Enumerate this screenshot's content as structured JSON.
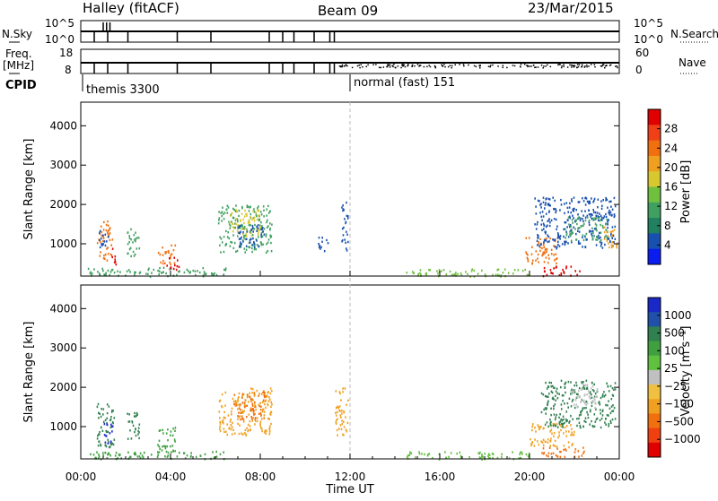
{
  "header": {
    "title": "Halley (fitACF)",
    "beam": "Beam 09",
    "date": "23/Mar/2015"
  },
  "panels": {
    "nsky": {
      "left_label": "N.Sky",
      "right_label": "N.Search",
      "left_ticks": [
        "10^5",
        "10^0"
      ],
      "right_ticks": [
        "10^5",
        "10^0"
      ]
    },
    "freq": {
      "left_label_1": "Freq.",
      "left_label_2": "[MHz]",
      "right_label": "Nave",
      "left_ticks": [
        "18",
        "8"
      ],
      "right_ticks": [
        "60",
        "0"
      ]
    },
    "cpid": {
      "label": "CPID",
      "mode_1": "themis 3300",
      "mode_2": "normal (fast) 151"
    }
  },
  "chart_data": [
    {
      "type": "heatmap",
      "name": "power",
      "ylabel": "Slant Range [km]",
      "xlabel": "",
      "yticks": [
        1000,
        2000,
        3000,
        4000
      ],
      "ylim": [
        180,
        4600
      ],
      "xlim": [
        0,
        24
      ],
      "colorbar": {
        "label": "Power [dB]",
        "ticks": [
          "28",
          "24",
          "20",
          "16",
          "12",
          "8",
          "4"
        ],
        "colors": [
          "#e00000",
          "#f04018",
          "#f07010",
          "#f0a020",
          "#d8c830",
          "#70c040",
          "#40a060",
          "#208060",
          "#1850b0",
          "#0a1cf0"
        ]
      },
      "regions": [
        {
          "t0": 0.7,
          "t1": 1.4,
          "r0": 600,
          "r1": 1600,
          "c": "#f07010"
        },
        {
          "t0": 0.8,
          "t1": 1.2,
          "r0": 900,
          "r1": 1500,
          "c": "#1850b0"
        },
        {
          "t0": 1.3,
          "t1": 1.6,
          "r0": 500,
          "r1": 900,
          "c": "#e00000"
        },
        {
          "t0": 2.0,
          "t1": 2.6,
          "r0": 700,
          "r1": 1400,
          "c": "#40a060"
        },
        {
          "t0": 3.4,
          "t1": 4.2,
          "r0": 500,
          "r1": 1000,
          "c": "#f07010"
        },
        {
          "t0": 3.8,
          "t1": 4.4,
          "r0": 350,
          "r1": 700,
          "c": "#e00000"
        },
        {
          "t0": 6.1,
          "t1": 8.5,
          "r0": 800,
          "r1": 2000,
          "c": "#40a060"
        },
        {
          "t0": 6.6,
          "t1": 8.0,
          "r0": 1200,
          "r1": 1900,
          "c": "#d8c830"
        },
        {
          "t0": 7.0,
          "t1": 8.2,
          "r0": 900,
          "r1": 1500,
          "c": "#1850b0"
        },
        {
          "t0": 10.5,
          "t1": 11.0,
          "r0": 800,
          "r1": 1200,
          "c": "#1850b0"
        },
        {
          "t0": 11.6,
          "t1": 11.9,
          "r0": 800,
          "r1": 2100,
          "c": "#1850b0"
        },
        {
          "t0": 19.8,
          "t1": 21.2,
          "r0": 500,
          "r1": 1200,
          "c": "#f07010"
        },
        {
          "t0": 20.2,
          "t1": 23.8,
          "r0": 900,
          "r1": 2200,
          "c": "#1850b0"
        },
        {
          "t0": 21.5,
          "t1": 23.5,
          "r0": 1100,
          "r1": 1700,
          "c": "#40a060"
        },
        {
          "t0": 20.5,
          "t1": 22.3,
          "r0": 200,
          "r1": 450,
          "c": "#e00000"
        },
        {
          "t0": 23.3,
          "t1": 23.9,
          "r0": 900,
          "r1": 1500,
          "c": "#f0a020"
        },
        {
          "t0": 0.3,
          "t1": 6.5,
          "r0": 190,
          "r1": 420,
          "c": "#40a060"
        },
        {
          "t0": 14.5,
          "t1": 20.0,
          "r0": 190,
          "r1": 380,
          "c": "#70c040"
        }
      ]
    },
    {
      "type": "heatmap",
      "name": "velocity",
      "ylabel": "Slant Range [km]",
      "xlabel": "Time UT",
      "xticks": [
        "00:00",
        "04:00",
        "08:00",
        "12:00",
        "16:00",
        "20:00",
        "00:00"
      ],
      "yticks": [
        1000,
        2000,
        3000,
        4000
      ],
      "ylim": [
        180,
        4600
      ],
      "xlim": [
        0,
        24
      ],
      "colorbar": {
        "label": "Velocity [m s⁻¹]",
        "ticks": [
          "1000",
          "500",
          "100",
          "25",
          "−25",
          "−100",
          "−500",
          "−1000"
        ],
        "colors": [
          "#1a28c8",
          "#2050a8",
          "#308050",
          "#40a040",
          "#60c040",
          "#c0c0c0",
          "#f0c040",
          "#f0a020",
          "#f07010",
          "#f04010",
          "#e00000"
        ]
      },
      "regions": [
        {
          "t0": 0.7,
          "t1": 1.5,
          "r0": 500,
          "r1": 1600,
          "c": "#308050"
        },
        {
          "t0": 1.0,
          "t1": 1.4,
          "r0": 500,
          "r1": 1100,
          "c": "#1a28c8"
        },
        {
          "t0": 2.0,
          "t1": 2.6,
          "r0": 700,
          "r1": 1400,
          "c": "#308050"
        },
        {
          "t0": 3.4,
          "t1": 4.2,
          "r0": 400,
          "r1": 1000,
          "c": "#40a040"
        },
        {
          "t0": 6.1,
          "t1": 8.5,
          "r0": 800,
          "r1": 2000,
          "c": "#f0a020"
        },
        {
          "t0": 6.8,
          "t1": 8.2,
          "r0": 1200,
          "r1": 1900,
          "c": "#f07010"
        },
        {
          "t0": 11.3,
          "t1": 11.9,
          "r0": 800,
          "r1": 2000,
          "c": "#f0a020"
        },
        {
          "t0": 20.0,
          "t1": 22.0,
          "r0": 500,
          "r1": 1100,
          "c": "#f0a020"
        },
        {
          "t0": 20.5,
          "t1": 23.8,
          "r0": 1000,
          "r1": 2200,
          "c": "#308050"
        },
        {
          "t0": 21.8,
          "t1": 23.0,
          "r0": 1500,
          "r1": 2100,
          "c": "#c0c0c0"
        },
        {
          "t0": 20.5,
          "t1": 22.5,
          "r0": 250,
          "r1": 500,
          "c": "#f07010"
        },
        {
          "t0": 0.3,
          "t1": 6.5,
          "r0": 190,
          "r1": 400,
          "c": "#40a040"
        },
        {
          "t0": 14.5,
          "t1": 20.0,
          "r0": 190,
          "r1": 380,
          "c": "#60c040"
        }
      ]
    }
  ]
}
